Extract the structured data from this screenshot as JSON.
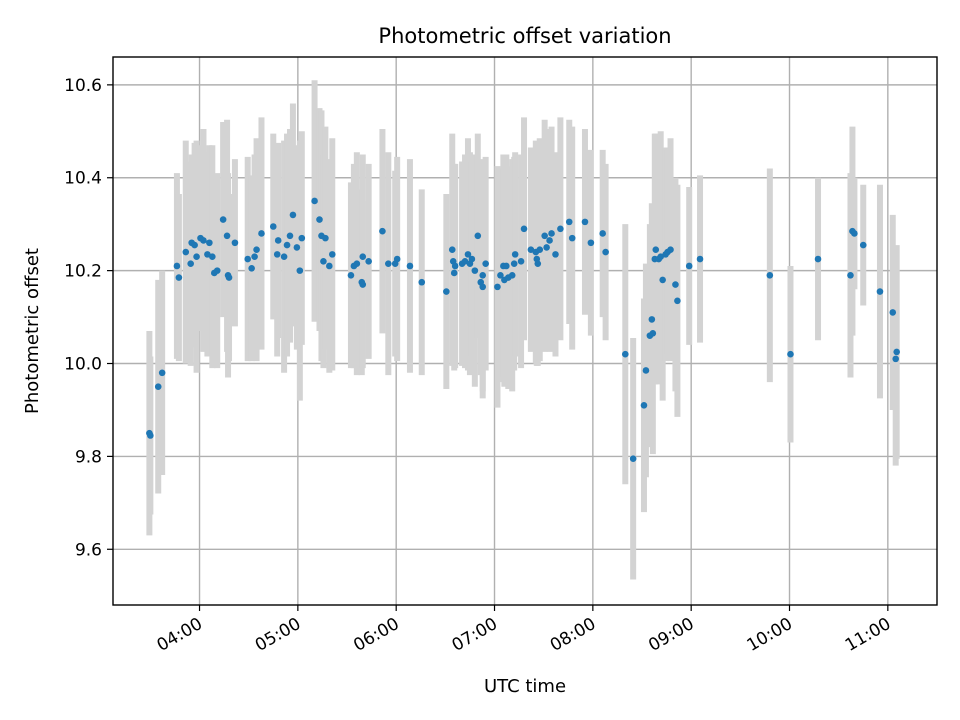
{
  "chart_data": {
    "type": "scatter",
    "title": "Photometric offset variation",
    "xlabel": "UTC time",
    "ylabel": "Photometric offset",
    "x_unit": "hours UTC",
    "xlim": [
      3.12,
      11.5
    ],
    "ylim": [
      9.48,
      10.66
    ],
    "xticks": [
      {
        "value": 4,
        "label": "04:00"
      },
      {
        "value": 5,
        "label": "05:00"
      },
      {
        "value": 6,
        "label": "06:00"
      },
      {
        "value": 7,
        "label": "07:00"
      },
      {
        "value": 8,
        "label": "08:00"
      },
      {
        "value": 9,
        "label": "09:00"
      },
      {
        "value": 10,
        "label": "10:00"
      },
      {
        "value": 11,
        "label": "11:00"
      }
    ],
    "yticks": [
      {
        "value": 9.6,
        "label": "9.6"
      },
      {
        "value": 9.8,
        "label": "9.8"
      },
      {
        "value": 10.0,
        "label": "10.0"
      },
      {
        "value": 10.2,
        "label": "10.2"
      },
      {
        "value": 10.4,
        "label": "10.4"
      },
      {
        "value": 10.6,
        "label": "10.6"
      }
    ],
    "grid": true,
    "marker_color": "#1f77b4",
    "errorbar_color": "#d3d3d3",
    "points": [
      [
        3.49,
        9.85,
        0.22
      ],
      [
        3.5,
        9.845,
        0.17
      ],
      [
        3.58,
        9.95,
        0.23
      ],
      [
        3.62,
        9.98,
        0.22
      ],
      [
        3.77,
        10.21,
        0.2
      ],
      [
        3.79,
        10.185,
        0.18
      ],
      [
        3.86,
        10.24,
        0.24
      ],
      [
        3.91,
        10.215,
        0.22
      ],
      [
        3.92,
        10.26,
        0.19
      ],
      [
        3.95,
        10.255,
        0.22
      ],
      [
        3.97,
        10.23,
        0.25
      ],
      [
        4.01,
        10.27,
        0.2
      ],
      [
        4.04,
        10.265,
        0.24
      ],
      [
        4.08,
        10.235,
        0.22
      ],
      [
        4.1,
        10.26,
        0.21
      ],
      [
        4.13,
        10.23,
        0.24
      ],
      [
        4.15,
        10.195,
        0.17
      ],
      [
        4.18,
        10.2,
        0.21
      ],
      [
        4.24,
        10.31,
        0.21
      ],
      [
        4.28,
        10.275,
        0.25
      ],
      [
        4.29,
        10.19,
        0.22
      ],
      [
        4.3,
        10.185,
        0.18
      ],
      [
        4.36,
        10.26,
        0.18
      ],
      [
        4.49,
        10.225,
        0.22
      ],
      [
        4.53,
        10.205,
        0.2
      ],
      [
        4.56,
        10.23,
        0.22
      ],
      [
        4.58,
        10.245,
        0.24
      ],
      [
        4.63,
        10.28,
        0.25
      ],
      [
        4.75,
        10.295,
        0.2
      ],
      [
        4.79,
        10.235,
        0.22
      ],
      [
        4.8,
        10.265,
        0.21
      ],
      [
        4.86,
        10.23,
        0.25
      ],
      [
        4.89,
        10.255,
        0.24
      ],
      [
        4.92,
        10.275,
        0.23
      ],
      [
        4.95,
        10.32,
        0.24
      ],
      [
        4.99,
        10.25,
        0.22
      ],
      [
        5.02,
        10.2,
        0.28
      ],
      [
        5.04,
        10.27,
        0.23
      ],
      [
        5.17,
        10.35,
        0.26
      ],
      [
        5.22,
        10.31,
        0.24
      ],
      [
        5.24,
        10.275,
        0.27
      ],
      [
        5.26,
        10.22,
        0.23
      ],
      [
        5.28,
        10.27,
        0.24
      ],
      [
        5.32,
        10.21,
        0.23
      ],
      [
        5.35,
        10.235,
        0.25
      ],
      [
        5.54,
        10.19,
        0.2
      ],
      [
        5.57,
        10.21,
        0.22
      ],
      [
        5.6,
        10.215,
        0.24
      ],
      [
        5.65,
        10.175,
        0.2
      ],
      [
        5.66,
        10.17,
        0.18
      ],
      [
        5.66,
        10.23,
        0.22
      ],
      [
        5.72,
        10.22,
        0.21
      ],
      [
        5.86,
        10.285,
        0.22
      ],
      [
        5.92,
        10.215,
        0.24
      ],
      [
        5.99,
        10.215,
        0.2
      ],
      [
        6.01,
        10.225,
        0.22
      ],
      [
        6.14,
        10.21,
        0.23
      ],
      [
        6.26,
        10.175,
        0.2
      ],
      [
        6.51,
        10.155,
        0.21
      ],
      [
        6.57,
        10.245,
        0.25
      ],
      [
        6.58,
        10.22,
        0.21
      ],
      [
        6.59,
        10.195,
        0.21
      ],
      [
        6.6,
        10.21,
        0.22
      ],
      [
        6.67,
        10.215,
        0.22
      ],
      [
        6.7,
        10.22,
        0.23
      ],
      [
        6.73,
        10.235,
        0.25
      ],
      [
        6.75,
        10.215,
        0.24
      ],
      [
        6.77,
        10.225,
        0.21
      ],
      [
        6.8,
        10.2,
        0.25
      ],
      [
        6.83,
        10.275,
        0.22
      ],
      [
        6.86,
        10.175,
        0.2
      ],
      [
        6.88,
        10.165,
        0.24
      ],
      [
        6.88,
        10.19,
        0.25
      ],
      [
        6.91,
        10.215,
        0.23
      ],
      [
        7.03,
        10.165,
        0.26
      ],
      [
        7.06,
        10.19,
        0.23
      ],
      [
        7.09,
        10.21,
        0.24
      ],
      [
        7.1,
        10.18,
        0.23
      ],
      [
        7.12,
        10.21,
        0.24
      ],
      [
        7.14,
        10.185,
        0.24
      ],
      [
        7.18,
        10.19,
        0.25
      ],
      [
        7.2,
        10.215,
        0.23
      ],
      [
        7.21,
        10.235,
        0.22
      ],
      [
        7.27,
        10.22,
        0.23
      ],
      [
        7.3,
        10.29,
        0.24
      ],
      [
        7.37,
        10.245,
        0.22
      ],
      [
        7.42,
        10.24,
        0.24
      ],
      [
        7.43,
        10.225,
        0.23
      ],
      [
        7.44,
        10.215,
        0.22
      ],
      [
        7.46,
        10.245,
        0.24
      ],
      [
        7.51,
        10.275,
        0.25
      ],
      [
        7.53,
        10.25,
        0.22
      ],
      [
        7.56,
        10.265,
        0.24
      ],
      [
        7.58,
        10.28,
        0.23
      ],
      [
        7.62,
        10.235,
        0.22
      ],
      [
        7.67,
        10.29,
        0.24
      ],
      [
        7.76,
        10.305,
        0.22
      ],
      [
        7.79,
        10.27,
        0.24
      ],
      [
        7.92,
        10.305,
        0.2
      ],
      [
        7.98,
        10.26,
        0.2
      ],
      [
        8.1,
        10.28,
        0.18
      ],
      [
        8.13,
        10.24,
        0.19
      ],
      [
        8.33,
        10.02,
        0.28
      ],
      [
        8.41,
        9.795,
        0.26
      ],
      [
        8.52,
        9.91,
        0.23
      ],
      [
        8.54,
        9.985,
        0.23
      ],
      [
        8.58,
        10.06,
        0.24
      ],
      [
        8.6,
        10.095,
        0.25
      ],
      [
        8.61,
        10.065,
        0.26
      ],
      [
        8.63,
        10.225,
        0.27
      ],
      [
        8.64,
        10.245,
        0.25
      ],
      [
        8.67,
        10.225,
        0.27
      ],
      [
        8.69,
        10.23,
        0.27
      ],
      [
        8.71,
        10.18,
        0.26
      ],
      [
        8.74,
        10.235,
        0.23
      ],
      [
        8.76,
        10.24,
        0.22
      ],
      [
        8.79,
        10.245,
        0.24
      ],
      [
        8.84,
        10.17,
        0.23
      ],
      [
        8.86,
        10.135,
        0.25
      ],
      [
        8.98,
        10.21,
        0.17
      ],
      [
        9.09,
        10.225,
        0.18
      ],
      [
        9.8,
        10.19,
        0.23
      ],
      [
        10.01,
        10.02,
        0.19
      ],
      [
        10.29,
        10.225,
        0.175
      ],
      [
        10.62,
        10.19,
        0.22
      ],
      [
        10.64,
        10.285,
        0.225
      ],
      [
        10.66,
        10.28,
        0.12
      ],
      [
        10.75,
        10.255,
        0.13
      ],
      [
        10.92,
        10.155,
        0.23
      ],
      [
        11.05,
        10.11,
        0.21
      ],
      [
        11.08,
        10.01,
        0.23
      ],
      [
        11.09,
        10.025,
        0.23
      ]
    ]
  }
}
